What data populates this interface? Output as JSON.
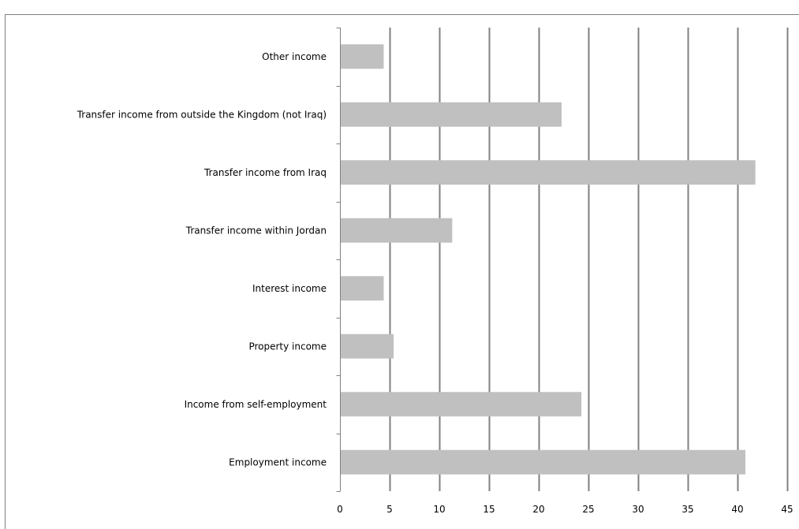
{
  "chart_data": {
    "type": "bar",
    "orientation": "horizontal",
    "title": "",
    "xlabel": "",
    "ylabel": "",
    "categories": [
      "Employment income",
      "Income from self-employment",
      "Property income",
      "Interest income",
      "Transfer income within Jordan",
      "Transfer income from Iraq",
      "Transfer income from outside the Kingdom (not  Iraq)",
      "Other income"
    ],
    "values": [
      40.8,
      24.3,
      5.4,
      4.4,
      11.3,
      41.8,
      22.3,
      4.4
    ],
    "xlim": [
      0,
      45
    ],
    "xticks": [
      0,
      5,
      10,
      15,
      20,
      25,
      30,
      35,
      40,
      45
    ],
    "grid": "vertical",
    "legend": "none",
    "colors": {
      "bar": "#c0c0c0",
      "grid": "#808080",
      "frame": "#7f7f7f",
      "text": "#000000"
    }
  }
}
